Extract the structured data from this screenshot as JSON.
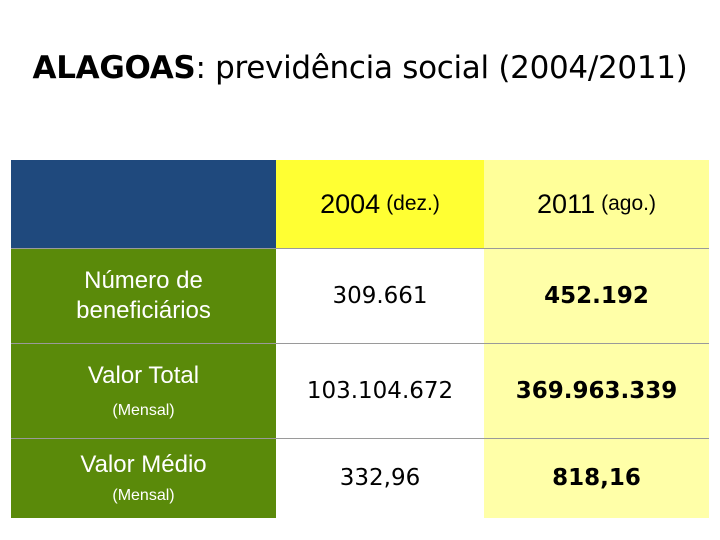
{
  "title": {
    "bold": "ALAGOAS",
    "rest": ": previdência social (2004/2011)"
  },
  "columns": [
    {
      "year": "2004",
      "period": "(dez.)"
    },
    {
      "year": "2011",
      "period": "(ago.)"
    }
  ],
  "rows": [
    {
      "label": "Número de beneficiários",
      "sublabel": "",
      "v2004": "309.661",
      "v2011": "452.192"
    },
    {
      "label": "Valor Total",
      "sublabel": "(Mensal)",
      "v2004": "103.104.672",
      "v2011": "369.963.339"
    },
    {
      "label": "Valor Médio",
      "sublabel": "(Mensal)",
      "v2004": "332,96",
      "v2011": "818,16"
    }
  ],
  "colors": {
    "header_corner": "#1f497d",
    "row_label": "#5a8a0a",
    "col2004_header": "#ffff33",
    "col2011": "#ffffa8"
  }
}
